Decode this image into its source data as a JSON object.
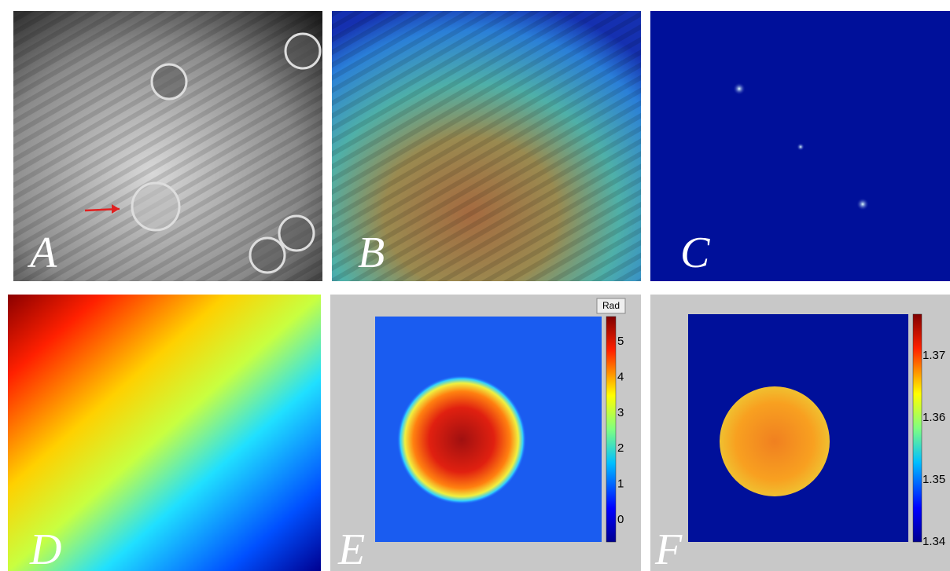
{
  "panels": [
    {
      "label": "A"
    },
    {
      "label": "B"
    },
    {
      "label": "C"
    },
    {
      "label": "D"
    },
    {
      "label": "E",
      "colorbar": {
        "title": "Rad",
        "ticks": [
          5,
          4,
          3,
          2,
          1,
          0
        ]
      }
    },
    {
      "label": "F",
      "colorbar": {
        "ticks": [
          1.37,
          1.36,
          1.35,
          1.34
        ]
      }
    }
  ]
}
